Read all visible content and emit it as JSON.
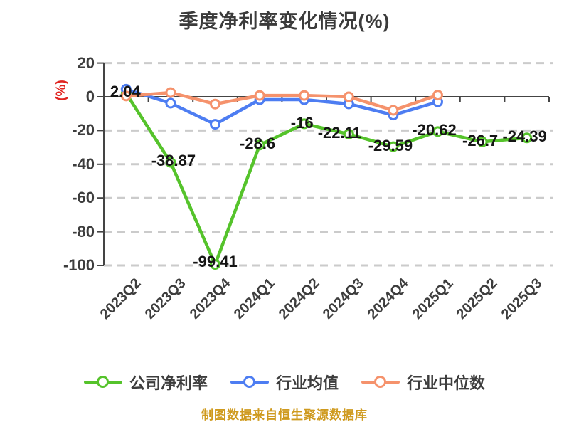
{
  "title": "季度净利率变化情况(%)",
  "y_axis_unit": "(%)",
  "footer": "制图数据来自恒生聚源数据库",
  "legend": {
    "items": [
      {
        "label": "公司净利率",
        "color": "#55c32b"
      },
      {
        "label": "行业均值",
        "color": "#4d7df2"
      },
      {
        "label": "行业中位数",
        "color": "#f5926c"
      }
    ]
  },
  "chart_data": {
    "type": "line",
    "title": "季度净利率变化情况(%)",
    "ylabel": "(%)",
    "categories": [
      "2023Q2",
      "2023Q3",
      "2023Q4",
      "2024Q1",
      "2024Q2",
      "2024Q3",
      "2024Q4",
      "2025Q1",
      "2025Q2",
      "2025Q3"
    ],
    "yticks": [
      "20",
      "0",
      "-20",
      "-40",
      "-60",
      "-80",
      "-100"
    ],
    "ylim": [
      -100,
      20
    ],
    "grid": "horizontal-dashed",
    "legend_position": "bottom",
    "series": [
      {
        "name": "公司净利率",
        "color": "#55c32b",
        "values": [
          2.04,
          -38.87,
          -99.41,
          -28.6,
          -16,
          -22.11,
          -29.59,
          -20.62,
          -26.7,
          -24.39
        ],
        "point_labels": [
          "2.04",
          "-38.87",
          "-99.41",
          "-28.6",
          "-16",
          "-22.11",
          "-29.59",
          "-20.62",
          "-26.7",
          "-24.39"
        ]
      },
      {
        "name": "行业均值",
        "color": "#4d7df2",
        "values": [
          4.5,
          -3.8,
          -16.3,
          -1.7,
          -1.7,
          -4.2,
          -10.8,
          -3.0
        ],
        "point_labels": []
      },
      {
        "name": "行业中位数",
        "color": "#f5926c",
        "values": [
          0.5,
          2.5,
          -4.3,
          0.8,
          0.8,
          0.0,
          -8.0,
          1.0
        ],
        "point_labels": []
      }
    ],
    "footnote": "制图数据来自恒生聚源数据库"
  }
}
